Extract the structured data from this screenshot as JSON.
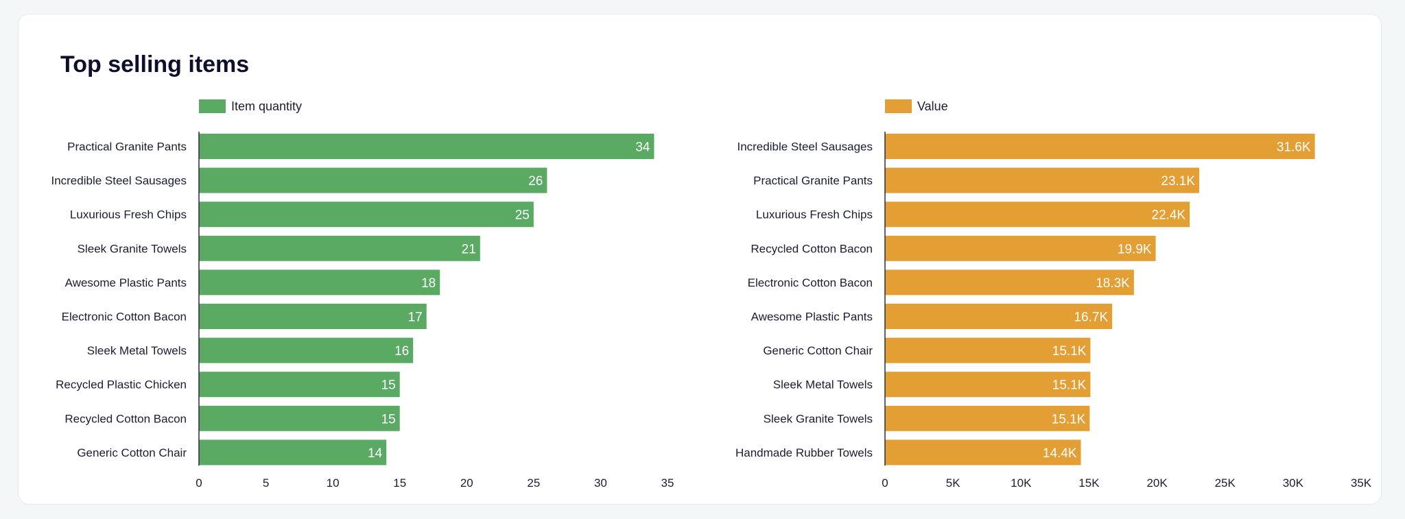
{
  "title": "Top selling items",
  "chart_data": [
    {
      "type": "bar",
      "orientation": "horizontal",
      "legend": "top-left",
      "series": [
        {
          "name": "Item quantity",
          "color": "#5aaa64",
          "values": [
            34,
            26,
            25,
            21,
            18,
            17,
            16,
            15,
            15,
            14
          ],
          "labels": [
            "34",
            "26",
            "25",
            "21",
            "18",
            "17",
            "16",
            "15",
            "15",
            "14"
          ]
        }
      ],
      "categories": [
        "Practical Granite Pants",
        "Incredible Steel Sausages",
        "Luxurious Fresh Chips",
        "Sleek Granite Towels",
        "Awesome Plastic Pants",
        "Electronic Cotton Bacon",
        "Sleek Metal Towels",
        "Recycled Plastic Chicken",
        "Recycled Cotton Bacon",
        "Generic Cotton Chair"
      ],
      "xlim": [
        0,
        35
      ],
      "ticks": [
        0,
        5,
        10,
        15,
        20,
        25,
        30,
        35
      ],
      "tick_labels": [
        "0",
        "5",
        "10",
        "15",
        "20",
        "25",
        "30",
        "35"
      ],
      "grid": false
    },
    {
      "type": "bar",
      "orientation": "horizontal",
      "legend": "top-left",
      "series": [
        {
          "name": "Value",
          "color": "#e39e34",
          "values": [
            31600,
            23100,
            22400,
            19900,
            18300,
            16700,
            15100,
            15100,
            15050,
            14400
          ],
          "labels": [
            "31.6K",
            "23.1K",
            "22.4K",
            "19.9K",
            "18.3K",
            "16.7K",
            "15.1K",
            "15.1K",
            "15.1K",
            "14.4K"
          ]
        }
      ],
      "categories": [
        "Incredible Steel Sausages",
        "Practical Granite Pants",
        "Luxurious Fresh Chips",
        "Recycled Cotton Bacon",
        "Electronic Cotton Bacon",
        "Awesome Plastic Pants",
        "Generic Cotton Chair",
        "Sleek Metal Towels",
        "Sleek Granite Towels",
        "Handmade Rubber Towels"
      ],
      "xlim": [
        0,
        35000
      ],
      "ticks": [
        0,
        5000,
        10000,
        15000,
        20000,
        25000,
        30000,
        35000
      ],
      "tick_labels": [
        "0",
        "5K",
        "10K",
        "15K",
        "20K",
        "25K",
        "30K",
        "35K"
      ],
      "grid": false
    }
  ]
}
